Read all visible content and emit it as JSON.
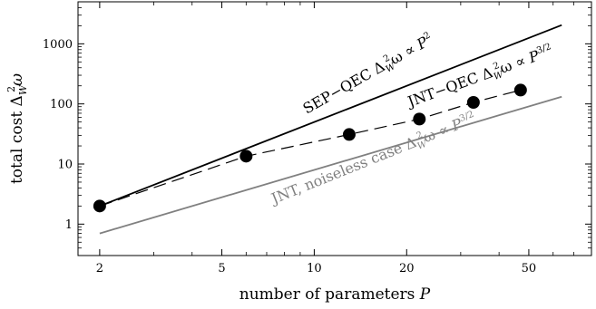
{
  "chart_data": {
    "type": "line",
    "xscale": "log",
    "yscale": "log",
    "xlim": [
      1.7,
      80
    ],
    "ylim": [
      0.3,
      5000
    ],
    "xticks": [
      {
        "value": 2,
        "label": "2"
      },
      {
        "value": 5,
        "label": "5"
      },
      {
        "value": 10,
        "label": "10"
      },
      {
        "value": 20,
        "label": "20"
      },
      {
        "value": 50,
        "label": "50"
      }
    ],
    "yticks": [
      {
        "value": 1,
        "label": "1"
      },
      {
        "value": 10,
        "label": "10"
      },
      {
        "value": 100,
        "label": "100"
      },
      {
        "value": 1000,
        "label": "1000"
      }
    ],
    "xlabel": {
      "text": "number of parameters ",
      "var": "P"
    },
    "ylabel": {
      "text": "total cost Δ",
      "sub": "W",
      "sup": "2",
      "tail": "ω"
    },
    "series": [
      {
        "kind": "solid",
        "color": "#000000",
        "x": [
          2,
          64
        ],
        "y": [
          2,
          2048
        ]
      },
      {
        "kind": "dashed",
        "color": "#000000",
        "x": [
          2,
          6,
          13,
          22,
          33,
          47
        ],
        "y": [
          2,
          13.5,
          31,
          56,
          106,
          170
        ]
      },
      {
        "kind": "points",
        "color": "#000000",
        "x": [
          2,
          6,
          13,
          22,
          33,
          47
        ],
        "y": [
          2,
          13.5,
          31,
          56,
          106,
          170
        ]
      },
      {
        "kind": "solid",
        "color": "#808080",
        "x": [
          2,
          64
        ],
        "y": [
          0.7,
          132
        ]
      }
    ],
    "annotations": [
      {
        "prefix": "SEP−QEC Δ",
        "sub": "W",
        "sup": "2",
        "mid": "ω ∝ ",
        "var": "P",
        "exp": "2",
        "color": "#000000"
      },
      {
        "prefix": "JNT−QEC Δ",
        "sub": "W",
        "sup": "2",
        "mid": "ω ∝ ",
        "var": "P",
        "exp": "3/2",
        "color": "#000000"
      },
      {
        "prefix": "JNT, noiseless case Δ",
        "sub": "W",
        "sup": "2",
        "mid": "ω ∝ ",
        "var": "P",
        "exp": "3/2",
        "color": "#808080"
      }
    ]
  }
}
